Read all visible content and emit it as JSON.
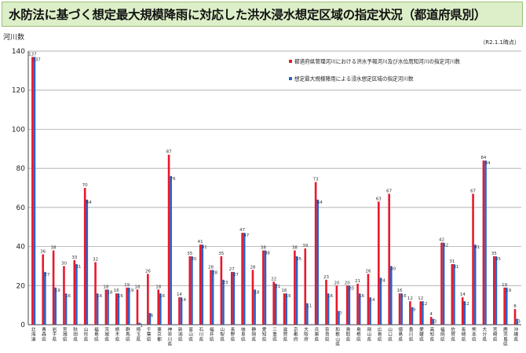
{
  "title": "水防法に基づく想定最大規模降雨に対応した洪水浸水想定区域の指定状況（都道府県別）",
  "colors": {
    "series_red": "#e8192c",
    "series_blue": "#2d62c4",
    "title_bg": "#dcefc8"
  },
  "chart_data": {
    "type": "bar",
    "ylabel": "河川数",
    "note": "（R2.1.1時点）",
    "ylim": [
      0,
      140
    ],
    "yticks": [
      0,
      20,
      40,
      60,
      80,
      100,
      120,
      140
    ],
    "grid": true,
    "legend_position": "top-right",
    "categories": [
      "北海道",
      "青森県",
      "岩手県",
      "宮城県",
      "秋田県",
      "山形県",
      "福島県",
      "茨城県",
      "栃木県",
      "群馬県",
      "埼玉県",
      "千葉県",
      "東京都",
      "神奈川県",
      "新潟県",
      "富山県",
      "石川県",
      "福井県",
      "山梨県",
      "長野県",
      "岐阜県",
      "静岡県",
      "愛知県",
      "三重県",
      "滋賀県",
      "京都府",
      "大阪府",
      "兵庫県",
      "奈良県",
      "和歌山県",
      "鳥取県",
      "島根県",
      "岡山県",
      "広島県",
      "山口県",
      "徳島県",
      "香川県",
      "愛媛県",
      "高知県",
      "福岡県",
      "佐賀県",
      "長崎県",
      "熊本県",
      "大分県",
      "宮崎県",
      "鹿児島県",
      "沖縄県"
    ],
    "category_labels": [
      "北\n海\n道",
      "青\n森\n県",
      "岩\n手\n県",
      "宮\n城\n県",
      "秋\n田\n県",
      "山\n形\n県",
      "福\n島\n県",
      "茨\n城\n県",
      "栃\n木\n県",
      "群\n馬\n県",
      "埼\n玉\n県",
      "千\n葉\n県",
      "東\n京\n都",
      "神\n奈\n川\n県",
      "新\n潟\n県",
      "富\n山\n県",
      "石\n川\n県",
      "福\n井\n県",
      "山\n梨\n県",
      "長\n野\n県",
      "岐\n阜\n県",
      "静\n岡\n県",
      "愛\n知\n県",
      "三\n重\n県",
      "滋\n賀\n県",
      "京\n都\n府",
      "大\n阪\n府",
      "兵\n庫\n県",
      "奈\n良\n県",
      "和\n歌\n山\n県",
      "鳥\n取\n県",
      "島\n根\n県",
      "岡\n山\n県",
      "広\n島\n県",
      "山\n口\n県",
      "徳\n島\n県",
      "香\n川\n県",
      "愛\n媛\n県",
      "高\n知\n県",
      "福\n岡\n県",
      "佐\n賀\n県",
      "長\n崎\n県",
      "熊\n本\n県",
      "大\n分\n県",
      "宮\n崎\n県",
      "鹿\n児\n島\n県",
      "沖\n縄\n県"
    ],
    "series": [
      {
        "name": "都道府県管理河川における洪水予報河川及び水位周知河川の指定河川数",
        "values": [
          137,
          36,
          38,
          30,
          33,
          70,
          32,
          18,
          16,
          19,
          18,
          26,
          18,
          87,
          14,
          35,
          41,
          28,
          35,
          27,
          47,
          28,
          38,
          22,
          16,
          38,
          39,
          73,
          23,
          20,
          20,
          21,
          26,
          63,
          67,
          16,
          12,
          12,
          4,
          42,
          31,
          14,
          67,
          84,
          35,
          19,
          8
        ]
      },
      {
        "name": "想定最大規模降雨による浸水想定区域の指定河川数",
        "values": [
          137,
          27,
          19,
          16,
          31,
          64,
          16,
          18,
          16,
          19,
          1,
          6,
          16,
          76,
          14,
          35,
          41,
          28,
          23,
          27,
          47,
          18,
          38,
          21,
          16,
          35,
          11,
          64,
          16,
          7,
          20,
          16,
          14,
          24,
          30,
          16,
          9,
          12,
          3,
          42,
          31,
          12,
          41,
          84,
          35,
          19,
          3
        ]
      }
    ]
  }
}
